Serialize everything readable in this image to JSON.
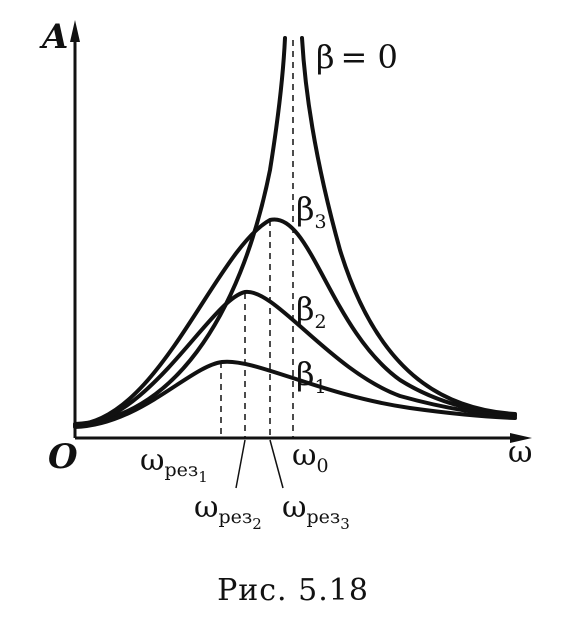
{
  "figure": {
    "caption": "Рис. 5.18",
    "axis_y_label": "A",
    "axis_x_label": "ω",
    "origin_label": "O"
  },
  "curves": [
    {
      "id": "beta0",
      "label": "β = 0",
      "label_main": "β",
      "label_sub": "= 0"
    },
    {
      "id": "beta3",
      "label": "β3",
      "label_main": "β",
      "label_sub": "3"
    },
    {
      "id": "beta2",
      "label": "β2",
      "label_main": "β",
      "label_sub": "2"
    },
    {
      "id": "beta1",
      "label": "β1",
      "label_main": "β",
      "label_sub": "1"
    }
  ],
  "frequencies": [
    {
      "id": "res1",
      "main": "ω",
      "sub": "рез",
      "subsub": "1"
    },
    {
      "id": "res2",
      "main": "ω",
      "sub": "рез",
      "subsub": "2"
    },
    {
      "id": "res3",
      "main": "ω",
      "sub": "рез",
      "subsub": "3"
    },
    {
      "id": "w0",
      "main": "ω",
      "sub": "0"
    }
  ],
  "colors": {
    "ink": "#111111",
    "background": "#ffffff"
  }
}
